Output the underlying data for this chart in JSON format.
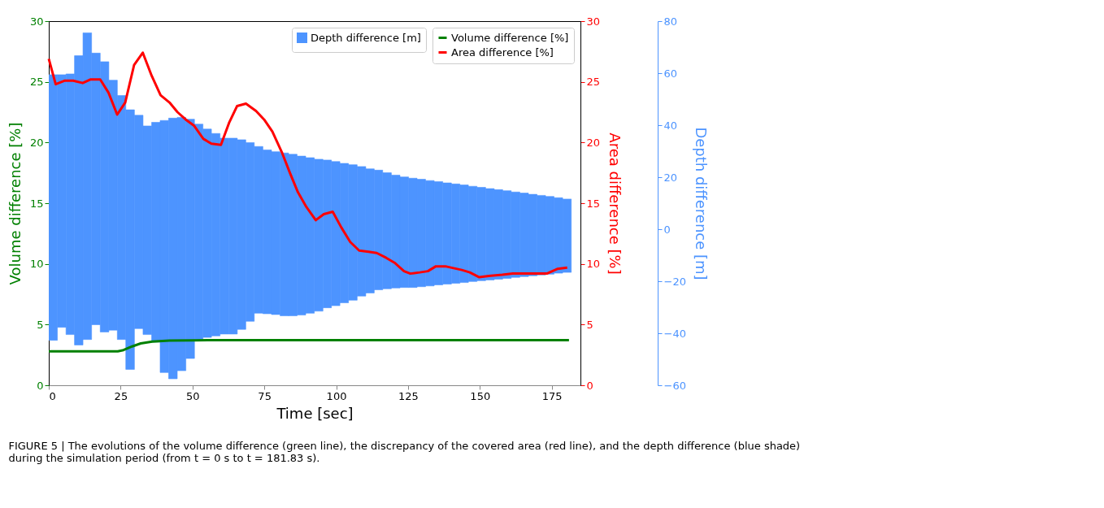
{
  "chart_data": {
    "type": "line",
    "xlabel": "Time [sec]",
    "ylabel": "Volume difference [%]",
    "y2label": "Area difference [%]",
    "y3label": "Depth difference [m]",
    "xlim": [
      0,
      185
    ],
    "xticks": [
      0,
      25,
      50,
      75,
      100,
      125,
      150,
      175
    ],
    "ylim": [
      0,
      30
    ],
    "yticks": [
      0,
      5,
      10,
      15,
      20,
      25,
      30
    ],
    "y2lim": [
      0,
      30
    ],
    "y2ticks": [
      0,
      5,
      10,
      15,
      20,
      25,
      30
    ],
    "y3lim": [
      -60,
      80
    ],
    "y3ticks": [
      -60,
      -40,
      -20,
      0,
      20,
      40,
      60,
      80
    ],
    "grid": false,
    "legend": "top right",
    "marker": "none",
    "line_style": "solid",
    "annotations": [
      "FIGURE 5 | The evolutions of the volume difference (green line), the discrepancy of the covered area (red line), and the depth difference (blue shade) during the simulation period (from t = 0 s to t = 181.83 s)."
    ],
    "series": [
      {
        "name": "Depth difference [m]",
        "type": "bar",
        "axis": "y3",
        "color": "#4d94ff",
        "x": [
          1.5,
          4.5,
          7.5,
          10.4,
          13.4,
          16.4,
          19.4,
          22.4,
          25.3,
          28.3,
          31.3,
          34.3,
          37.3,
          40.2,
          43.2,
          46.2,
          49.2,
          52.2,
          55.1,
          58.1,
          61.1,
          64.1,
          67.1,
          70.0,
          73.0,
          76.0,
          79.0,
          82.0,
          84.9,
          87.9,
          90.9,
          93.9,
          96.9,
          99.8,
          102.8,
          105.8,
          108.8,
          111.8,
          114.7,
          117.7,
          120.7,
          123.7,
          126.7,
          129.6,
          132.6,
          135.6,
          138.6,
          141.6,
          144.5,
          147.5,
          150.5,
          153.5,
          156.5,
          159.4,
          162.4,
          165.4,
          168.4,
          171.4,
          174.3,
          177.3,
          180.3
        ],
        "base": [
          -42.7,
          -37.7,
          -40.5,
          -44.5,
          -42.4,
          -36.7,
          -39.5,
          -38.8,
          -42.4,
          -53.9,
          -38.2,
          -40.5,
          -43.4,
          -55.1,
          -57.5,
          -54.4,
          -49.7,
          -42.4,
          -41.6,
          -41.0,
          -40.3,
          -40.3,
          -38.5,
          -35.4,
          -32.3,
          -32.5,
          -32.8,
          -33.3,
          -33.3,
          -33.0,
          -32.3,
          -31.5,
          -30.2,
          -29.4,
          -28.3,
          -27.3,
          -25.7,
          -24.5,
          -23.3,
          -22.9,
          -22.6,
          -22.4,
          -22.4,
          -22.1,
          -21.8,
          -21.4,
          -21.1,
          -20.8,
          -20.5,
          -20.1,
          -19.8,
          -19.5,
          -19.2,
          -18.9,
          -18.5,
          -18.2,
          -17.9,
          -17.6,
          -17.3,
          -16.9,
          -16.6
        ],
        "values": [
          102.1,
          97.1,
          100.2,
          111.2,
          117.9,
          104.4,
          103.9,
          96.1,
          93.8,
          99.8,
          82.0,
          80.2,
          84.5,
          96.9,
          100.2,
          97.4,
          92.0,
          82.8,
          80.1,
          77.8,
          75.3,
          75.3,
          72.9,
          68.7,
          64.1,
          63.0,
          62.6,
          62.6,
          62.1,
          61.1,
          59.8,
          58.4,
          56.8,
          55.4,
          53.6,
          52.1,
          49.8,
          47.7,
          46.0,
          44.6,
          43.4,
          42.5,
          42.0,
          41.3,
          40.5,
          39.7,
          38.9,
          38.2,
          37.5,
          36.6,
          35.9,
          35.1,
          34.4,
          33.7,
          32.8,
          32.1,
          31.3,
          30.6,
          29.9,
          29.0,
          28.2
        ]
      },
      {
        "name": "Volume difference [%]",
        "color": "#008000",
        "x": [
          0,
          24,
          26,
          29,
          32,
          36,
          42,
          50,
          60,
          181
        ],
        "values": [
          2.8,
          2.8,
          2.9,
          3.2,
          3.45,
          3.6,
          3.68,
          3.7,
          3.72,
          3.72
        ]
      },
      {
        "name": "Area difference [%]",
        "axis": "y2",
        "color": "#ff0000",
        "x": [
          0,
          2.4,
          5.6,
          8.5,
          11.8,
          14.6,
          17.9,
          20.8,
          23.8,
          26.6,
          29.7,
          32.7,
          35.8,
          38.9,
          42.0,
          44.8,
          47.6,
          50.5,
          53.8,
          56.6,
          59.9,
          62.7,
          65.5,
          68.6,
          72.1,
          74.9,
          77.8,
          81.1,
          83.9,
          86.7,
          89.6,
          92.9,
          95.7,
          98.8,
          101.8,
          104.9,
          108.0,
          111.3,
          114.1,
          117.4,
          120.3,
          123.6,
          125.8,
          129.1,
          131.9,
          134.7,
          138.0,
          143.7,
          146.5,
          149.8,
          153.1,
          157.8,
          161.5,
          165.8,
          169.5,
          173.3,
          177.1,
          180.4
        ],
        "values": [
          26.9,
          24.8,
          25.1,
          25.1,
          24.9,
          25.2,
          25.2,
          24.1,
          22.3,
          23.3,
          26.4,
          27.4,
          25.5,
          23.9,
          23.3,
          22.5,
          21.9,
          21.4,
          20.3,
          19.9,
          19.8,
          21.6,
          23.0,
          23.2,
          22.6,
          21.9,
          20.9,
          19.2,
          17.5,
          15.9,
          14.7,
          13.6,
          14.1,
          14.3,
          13.0,
          11.8,
          11.1,
          11.0,
          10.9,
          10.5,
          10.1,
          9.4,
          9.2,
          9.3,
          9.4,
          9.8,
          9.8,
          9.5,
          9.3,
          8.9,
          9.0,
          9.1,
          9.2,
          9.2,
          9.2,
          9.2,
          9.6,
          9.7
        ]
      }
    ]
  }
}
